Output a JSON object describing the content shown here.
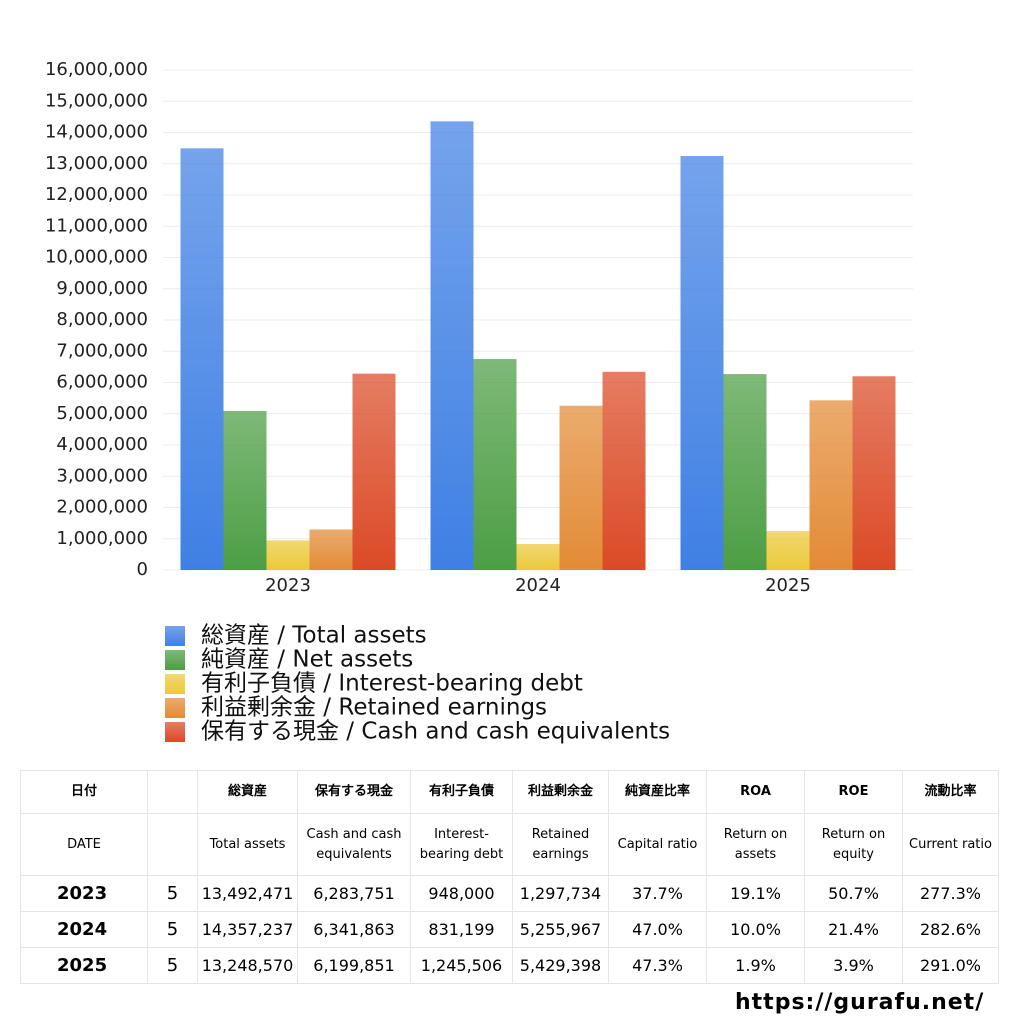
{
  "chart_data": {
    "type": "bar",
    "categories": [
      "2023",
      "2024",
      "2025"
    ],
    "series": [
      {
        "name": "総資産 / Total assets",
        "color": "#3f80e4",
        "values": [
          13492471,
          14357237,
          13248570
        ]
      },
      {
        "name": "純資産 / Net assets",
        "color": "#4c9e44",
        "values": [
          5090000,
          6750000,
          6270000
        ]
      },
      {
        "name": "有利子負債 / Interest-bearing debt",
        "color": "#ecc93a",
        "values": [
          948000,
          831199,
          1245506
        ]
      },
      {
        "name": "利益剰余金 / Retained earnings",
        "color": "#e38b36",
        "values": [
          1297734,
          5255967,
          5429398
        ]
      },
      {
        "name": "保有する現金 /  Cash and cash equivalents",
        "color": "#db4a26",
        "values": [
          6283751,
          6341863,
          6199851
        ]
      }
    ],
    "ylim": [
      0,
      16000000
    ],
    "yticks": [
      0,
      {
        "value": 1000000,
        "label": "1,000,000"
      },
      {
        "value": 2000000,
        "label": "2,000,000"
      },
      {
        "value": 3000000,
        "label": "3,000,000"
      },
      {
        "value": 4000000,
        "label": "4,000,000"
      },
      {
        "value": 5000000,
        "label": "5,000,000"
      },
      {
        "value": 6000000,
        "label": "6,000,000"
      },
      {
        "value": 7000000,
        "label": "7,000,000"
      },
      {
        "value": 8000000,
        "label": "8,000,000"
      },
      {
        "value": 9000000,
        "label": "9,000,000"
      },
      {
        "value": 10000000,
        "label": "10,000,000"
      },
      {
        "value": 11000000,
        "label": "11,000,000"
      },
      {
        "value": 12000000,
        "label": "12,000,000"
      },
      {
        "value": 13000000,
        "label": "13,000,000"
      },
      {
        "value": 14000000,
        "label": "14,000,000"
      },
      {
        "value": 15000000,
        "label": "15,000,000"
      },
      {
        "value": 16000000,
        "label": "16,000,000"
      }
    ],
    "grid": true
  },
  "table": {
    "header": [
      [
        "日付",
        null,
        "総資産",
        "保有する現金",
        "有利子負債",
        "利益剰余金",
        "純資産比率",
        "ROA",
        "ROE",
        "流動比率"
      ],
      [
        "DATE",
        null,
        "Total assets",
        "Cash and cash equivalents",
        "Interest-bearing debt",
        "Retained earnings",
        "Capital ratio",
        "Return on assets",
        "Return on equity",
        "Current ratio"
      ]
    ],
    "rows": [
      [
        "2023",
        "5",
        "13,492,471",
        "6,283,751",
        "948,000",
        "1,297,734",
        "37.7%",
        "19.1%",
        "50.7%",
        "277.3%"
      ],
      [
        "2024",
        "5",
        "14,357,237",
        "6,341,863",
        "831,199",
        "5,255,967",
        "47.0%",
        "10.0%",
        "21.4%",
        "282.6%"
      ],
      [
        "2025",
        "5",
        "13,248,570",
        "6,199,851",
        "1,245,506",
        "5,429,398",
        "47.3%",
        "1.9%",
        "3.9%",
        "291.0%"
      ]
    ]
  },
  "footer": "https://gurafu.net/"
}
